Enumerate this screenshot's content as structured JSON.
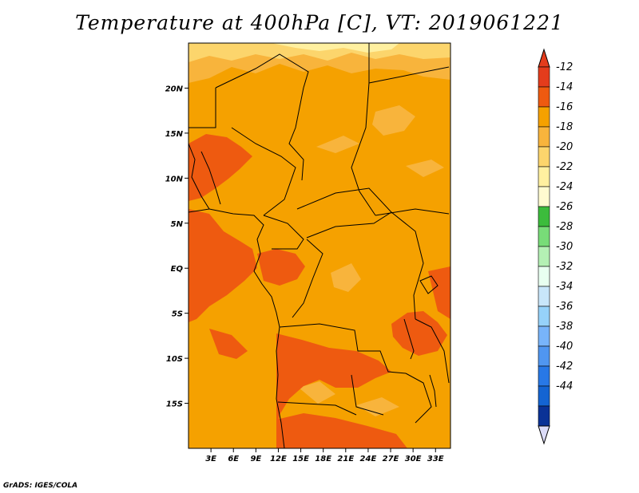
{
  "title": "Temperature at 400hPa [C], VT: 2019061221",
  "credit": "GrADS: IGES/COLA",
  "map": {
    "lon_range": [
      0,
      35
    ],
    "lat_range": [
      -20,
      25
    ],
    "lat_ticks": [
      {
        "value": 20,
        "label": "20N"
      },
      {
        "value": 15,
        "label": "15N"
      },
      {
        "value": 10,
        "label": "10N"
      },
      {
        "value": 5,
        "label": "5N"
      },
      {
        "value": 0,
        "label": "EQ"
      },
      {
        "value": -5,
        "label": "5S"
      },
      {
        "value": -10,
        "label": "10S"
      },
      {
        "value": -15,
        "label": "15S"
      }
    ],
    "lon_ticks": [
      {
        "value": 3,
        "label": "3E"
      },
      {
        "value": 6,
        "label": "6E"
      },
      {
        "value": 9,
        "label": "9E"
      },
      {
        "value": 12,
        "label": "12E"
      },
      {
        "value": 15,
        "label": "15E"
      },
      {
        "value": 18,
        "label": "18E"
      },
      {
        "value": 21,
        "label": "21E"
      },
      {
        "value": 24,
        "label": "24E"
      },
      {
        "value": 27,
        "label": "27E"
      },
      {
        "value": 30,
        "label": "30E"
      },
      {
        "value": 33,
        "label": "33E"
      }
    ]
  },
  "colorbar": {
    "levels": [
      {
        "label": "-12",
        "color": "#ee5a10"
      },
      {
        "label": "-14",
        "color": "#f5a100"
      },
      {
        "label": "-16",
        "color": "#f8b43c"
      },
      {
        "label": "-18",
        "color": "#fcd56c"
      },
      {
        "label": "-20",
        "color": "#fff0a0"
      },
      {
        "label": "-22",
        "color": "#fffbd0"
      },
      {
        "label": "-24",
        "color": "#3cbc3c"
      },
      {
        "label": "-26",
        "color": "#78dc78"
      },
      {
        "label": "-28",
        "color": "#b4f0b4"
      },
      {
        "label": "-30",
        "color": "#e8fff0"
      },
      {
        "label": "-32",
        "color": "#c8e6fa"
      },
      {
        "label": "-34",
        "color": "#96d2fa"
      },
      {
        "label": "-36",
        "color": "#78b4fa"
      },
      {
        "label": "-38",
        "color": "#5096f0"
      },
      {
        "label": "-40",
        "color": "#2878e6"
      },
      {
        "label": "-42",
        "color": "#1464d2"
      },
      {
        "label": "-44",
        "color": "#0a3296"
      }
    ],
    "top_arrow_color": "#e43c1c",
    "bottom_arrow_color": "#dcdcf8",
    "block_colors": [
      "#e43c1c",
      "#ee5a10",
      "#f5a100",
      "#f8b43c",
      "#fcd56c",
      "#fff0a0",
      "#fffbd0",
      "#3cbc3c",
      "#78dc78",
      "#b4f0b4",
      "#e8fff0",
      "#c8e6fa",
      "#96d2fa",
      "#78b4fa",
      "#5096f0",
      "#2878e6",
      "#1464d2",
      "#0a3296"
    ]
  },
  "field_colors": {
    "base": "#f5a100",
    "warm": "#ee5a10",
    "cool": "#f8b43c",
    "coolest": "#fcd56c",
    "palest": "#fff0a0"
  }
}
